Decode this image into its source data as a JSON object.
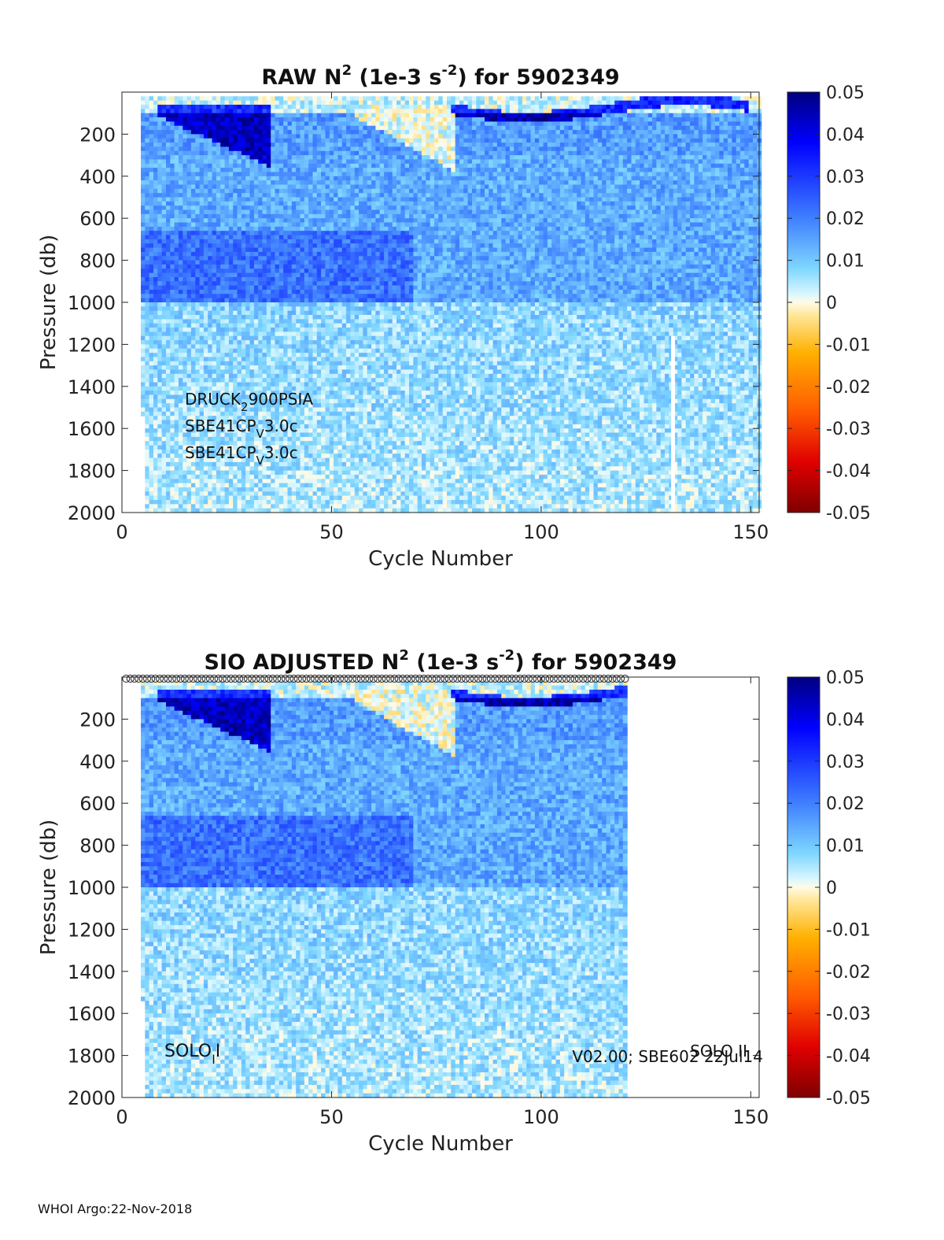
{
  "chart_data": [
    {
      "type": "heatmap",
      "title_parts": {
        "pre": "RAW N",
        "sup1": "2",
        "mid": " (1e-3 s",
        "sup2": "-2",
        "post": ") for 5902349"
      },
      "xlabel": "Cycle Number",
      "ylabel": "Pressure (db)",
      "xlim": [
        0,
        152
      ],
      "ylim": [
        2000,
        0
      ],
      "y_reversed": true,
      "xticks": [
        0,
        50,
        100,
        150
      ],
      "yticks": [
        200,
        400,
        600,
        800,
        1000,
        1200,
        1400,
        1600,
        1800,
        2000
      ],
      "cycles_with_data": [
        5,
        152
      ],
      "annotations": [
        {
          "pre": "DRUCK",
          "sub": "2",
          "post": "900PSIA"
        },
        {
          "pre": "SBE41CP",
          "sub": "V",
          "post": "3.0c"
        },
        {
          "pre": "SBE41CP",
          "sub": "V",
          "post": "3.0c"
        }
      ],
      "colorbar": {
        "min": -0.05,
        "max": 0.05,
        "ticks": [
          "0.05",
          "0.04",
          "0.03",
          "0.02",
          "0.01",
          "0",
          "-0.01",
          "-0.02",
          "-0.03",
          "-0.04",
          "-0.05"
        ]
      }
    },
    {
      "type": "heatmap",
      "title_parts": {
        "pre": "SIO  ADJUSTED N",
        "sup1": "2",
        "mid": " (1e-3 s",
        "sup2": "-2",
        "post": ") for 5902349"
      },
      "xlabel": "Cycle Number",
      "ylabel": "Pressure (db)",
      "xlim": [
        0,
        152
      ],
      "ylim": [
        2000,
        0
      ],
      "y_reversed": true,
      "xticks": [
        0,
        50,
        100,
        150
      ],
      "yticks": [
        200,
        400,
        600,
        800,
        1000,
        1200,
        1400,
        1600,
        1800,
        2000
      ],
      "cycles_with_data": [
        5,
        120
      ],
      "circle_markers_cycles": [
        1,
        120
      ],
      "annotations_left": [
        {
          "pre": "SOLO",
          "sub": "I",
          "post": "I"
        }
      ],
      "annotations_right": [
        "V02.00; SBE602 22Jul14",
        "SOLO II"
      ],
      "colorbar": {
        "min": -0.05,
        "max": 0.05,
        "ticks": [
          "0.05",
          "0.04",
          "0.03",
          "0.02",
          "0.01",
          "0",
          "-0.01",
          "-0.02",
          "-0.03",
          "-0.04",
          "-0.05"
        ]
      }
    }
  ],
  "footer": "WHOI Argo:22-Nov-2018"
}
